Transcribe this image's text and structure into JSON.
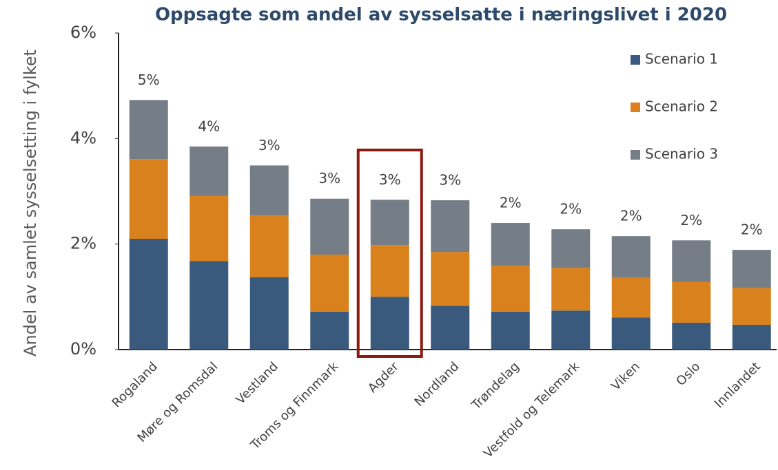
{
  "chart_data": {
    "type": "stacked_bar",
    "title": "Oppsagte som andel av sysselsatte i næringslivet i 2020",
    "y_label": "Andel av samlet sysselsetting i fylket",
    "categories": [
      "Rogaland",
      "Møre og Romsdal",
      "Vestland",
      "Troms og Finnmark",
      "Agder",
      "Nordland",
      "Trøndelag",
      "Vestfold og Telemark",
      "Viken",
      "Oslo",
      "Innlandet"
    ],
    "series": [
      {
        "name": "Scenario 1",
        "color": "#3a5a7d",
        "values": [
          2.1,
          1.68,
          1.37,
          0.72,
          1.0,
          0.83,
          0.72,
          0.74,
          0.61,
          0.51,
          0.47
        ]
      },
      {
        "name": "Scenario 2",
        "color": "#d9811c",
        "values": [
          1.51,
          1.23,
          1.17,
          1.08,
          0.98,
          1.02,
          0.87,
          0.81,
          0.76,
          0.77,
          0.7
        ]
      },
      {
        "name": "Scenario 3",
        "color": "#757d86",
        "values": [
          1.12,
          0.94,
          0.95,
          1.06,
          0.86,
          0.98,
          0.81,
          0.73,
          0.78,
          0.79,
          0.72
        ]
      }
    ],
    "total_labels": [
      "5%",
      "4%",
      "3%",
      "3%",
      "3%",
      "3%",
      "2%",
      "2%",
      "2%",
      "2%",
      "2%"
    ],
    "ylim": [
      0,
      6
    ],
    "yticks": [
      {
        "value": 0,
        "label": "0%"
      },
      {
        "value": 2,
        "label": "2%"
      },
      {
        "value": 4,
        "label": "4%"
      },
      {
        "value": 6,
        "label": "6%"
      }
    ],
    "legend": "upper right",
    "highlight": 4,
    "highlight_color": "#8b1a10"
  }
}
